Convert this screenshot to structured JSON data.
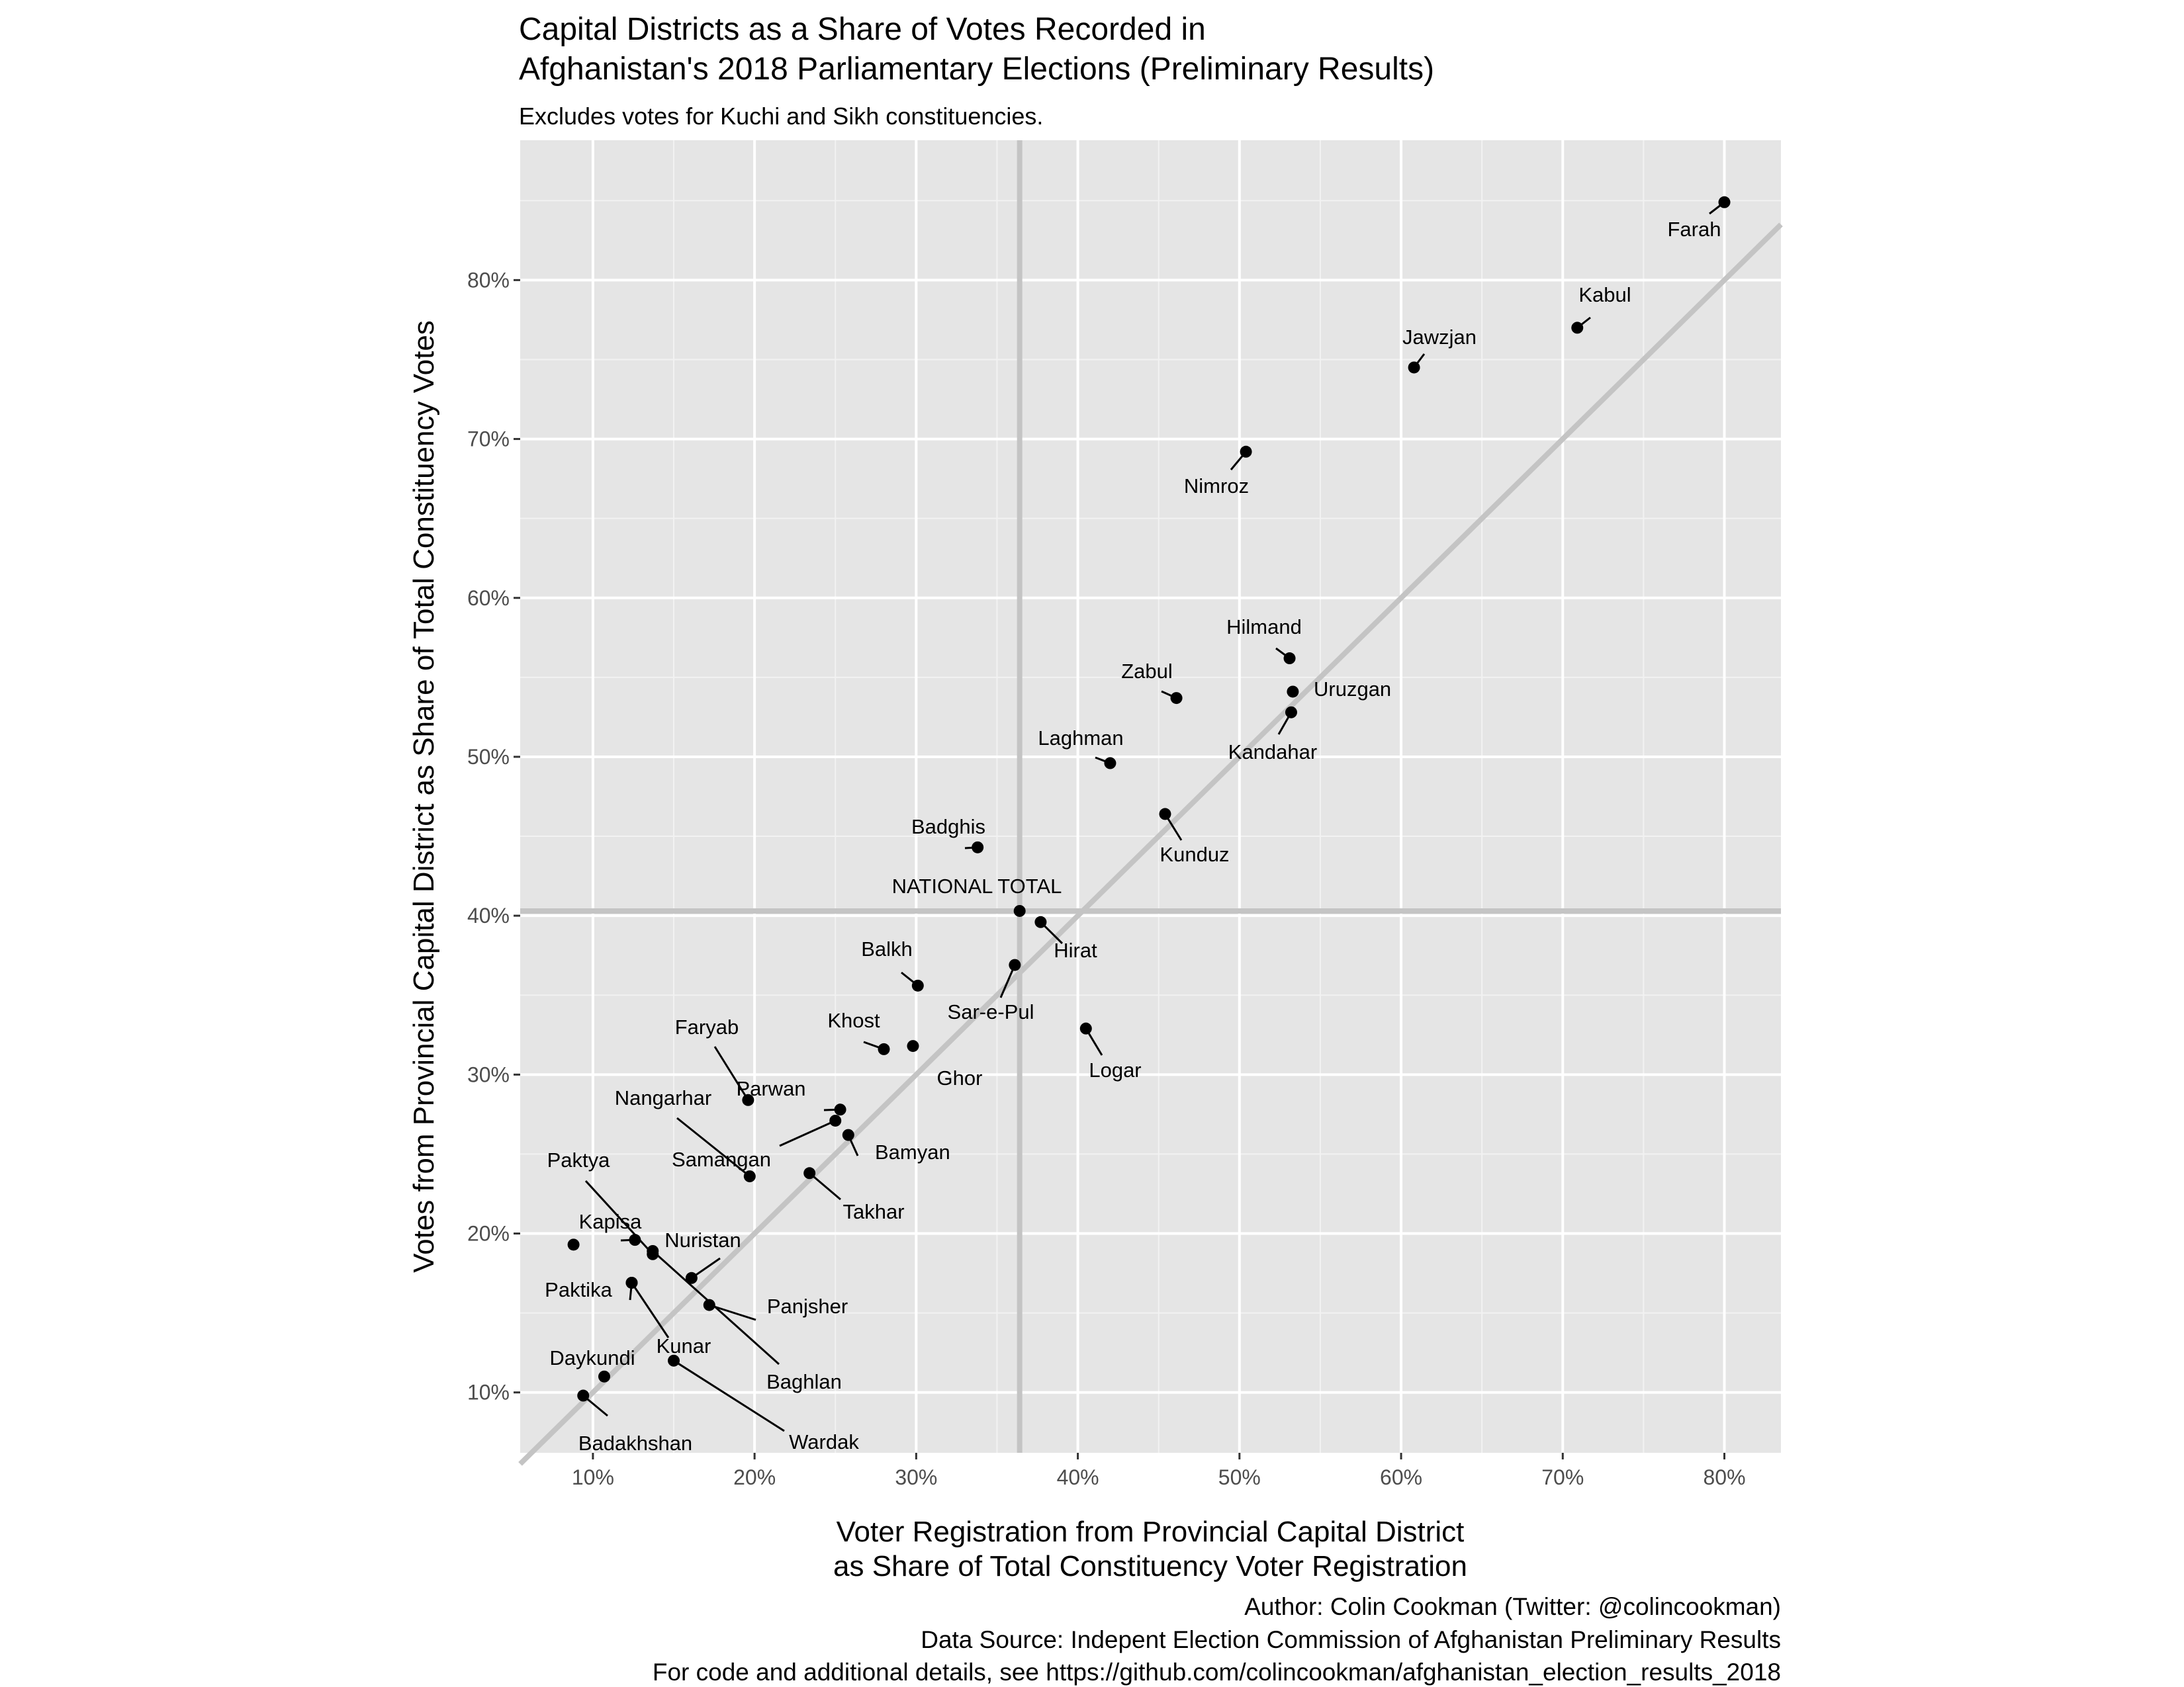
{
  "chart_data": {
    "type": "scatter",
    "title_lines": [
      "Capital Districts as a Share of Votes Recorded in",
      "Afghanistan's 2018 Parliamentary Elections (Preliminary Results)"
    ],
    "subtitle": "Excludes votes for Kuchi and Sikh constituencies.",
    "xlabel_lines": [
      "Voter Registration from Provincial Capital District",
      "as Share of Total Constituency Voter Registration"
    ],
    "ylabel": "Votes from Provincial Capital District as Share of Total Constituency Votes",
    "caption_lines": [
      "Author: Colin Cookman (Twitter: @colincookman)",
      "Data Source: Indepent Election Commission of Afghanistan Preliminary Results",
      "For code and additional details, see https://github.com/colincookman/afghanistan_election_results_2018"
    ],
    "x_unit": "fraction",
    "y_unit": "fraction",
    "xlim": [
      0.055,
      0.835
    ],
    "ylim": [
      0.062,
      0.888
    ],
    "xticks": [
      0.1,
      0.2,
      0.3,
      0.4,
      0.5,
      0.6,
      0.7,
      0.8
    ],
    "xtick_labels": [
      "10%",
      "20%",
      "30%",
      "40%",
      "50%",
      "60%",
      "70%",
      "80%"
    ],
    "yticks": [
      0.1,
      0.2,
      0.3,
      0.4,
      0.5,
      0.6,
      0.7,
      0.8
    ],
    "ytick_labels": [
      "10%",
      "20%",
      "30%",
      "40%",
      "50%",
      "60%",
      "70%",
      "80%"
    ],
    "grid": true,
    "reference_lines": {
      "diagonal": "y = x",
      "national_x": 0.364,
      "national_y": 0.403
    },
    "points": [
      {
        "label": "Farah",
        "x": 0.8,
        "y": 0.849
      },
      {
        "label": "Kabul",
        "x": 0.709,
        "y": 0.77
      },
      {
        "label": "Jawzjan",
        "x": 0.608,
        "y": 0.745
      },
      {
        "label": "Nimroz",
        "x": 0.504,
        "y": 0.692
      },
      {
        "label": "Hilmand",
        "x": 0.531,
        "y": 0.562
      },
      {
        "label": "Uruzgan",
        "x": 0.533,
        "y": 0.541
      },
      {
        "label": "Kandahar",
        "x": 0.532,
        "y": 0.528
      },
      {
        "label": "Zabul",
        "x": 0.461,
        "y": 0.537
      },
      {
        "label": "Laghman",
        "x": 0.42,
        "y": 0.496
      },
      {
        "label": "Kunduz",
        "x": 0.454,
        "y": 0.464
      },
      {
        "label": "Badghis",
        "x": 0.338,
        "y": 0.443
      },
      {
        "label": "NATIONAL TOTAL",
        "x": 0.364,
        "y": 0.403
      },
      {
        "label": "Hirat",
        "x": 0.377,
        "y": 0.396
      },
      {
        "label": "Balkh",
        "x": 0.301,
        "y": 0.356
      },
      {
        "label": "Sar-e-Pul",
        "x": 0.361,
        "y": 0.369
      },
      {
        "label": "Logar",
        "x": 0.405,
        "y": 0.329
      },
      {
        "label": "Khost",
        "x": 0.28,
        "y": 0.316
      },
      {
        "label": "Ghor",
        "x": 0.298,
        "y": 0.318
      },
      {
        "label": "Faryab",
        "x": 0.196,
        "y": 0.284
      },
      {
        "label": "Parwan",
        "x": 0.253,
        "y": 0.278
      },
      {
        "label": "Samangan",
        "x": 0.25,
        "y": 0.271
      },
      {
        "label": "Bamyan",
        "x": 0.258,
        "y": 0.262
      },
      {
        "label": "Nangarhar",
        "x": 0.197,
        "y": 0.236
      },
      {
        "label": "Takhar",
        "x": 0.234,
        "y": 0.238
      },
      {
        "label": "Paktya",
        "x": 0.137,
        "y": 0.187
      },
      {
        "label": "Kapisa",
        "x": 0.126,
        "y": 0.196
      },
      {
        "label": "Baghlan",
        "x": 0.137,
        "y": 0.189
      },
      {
        "label": "Nuristan",
        "x": 0.161,
        "y": 0.172
      },
      {
        "label": "Paktika",
        "x": 0.124,
        "y": 0.169
      },
      {
        "label": "Kunar",
        "x": 0.124,
        "y": 0.169
      },
      {
        "label": "Panjsher",
        "x": 0.172,
        "y": 0.155
      },
      {
        "label": "",
        "x": 0.088,
        "y": 0.193
      },
      {
        "label": "Daykundi",
        "x": 0.107,
        "y": 0.11
      },
      {
        "label": "Wardak",
        "x": 0.15,
        "y": 0.12
      },
      {
        "label": "Badakhshan",
        "x": 0.094,
        "y": 0.098
      }
    ]
  }
}
